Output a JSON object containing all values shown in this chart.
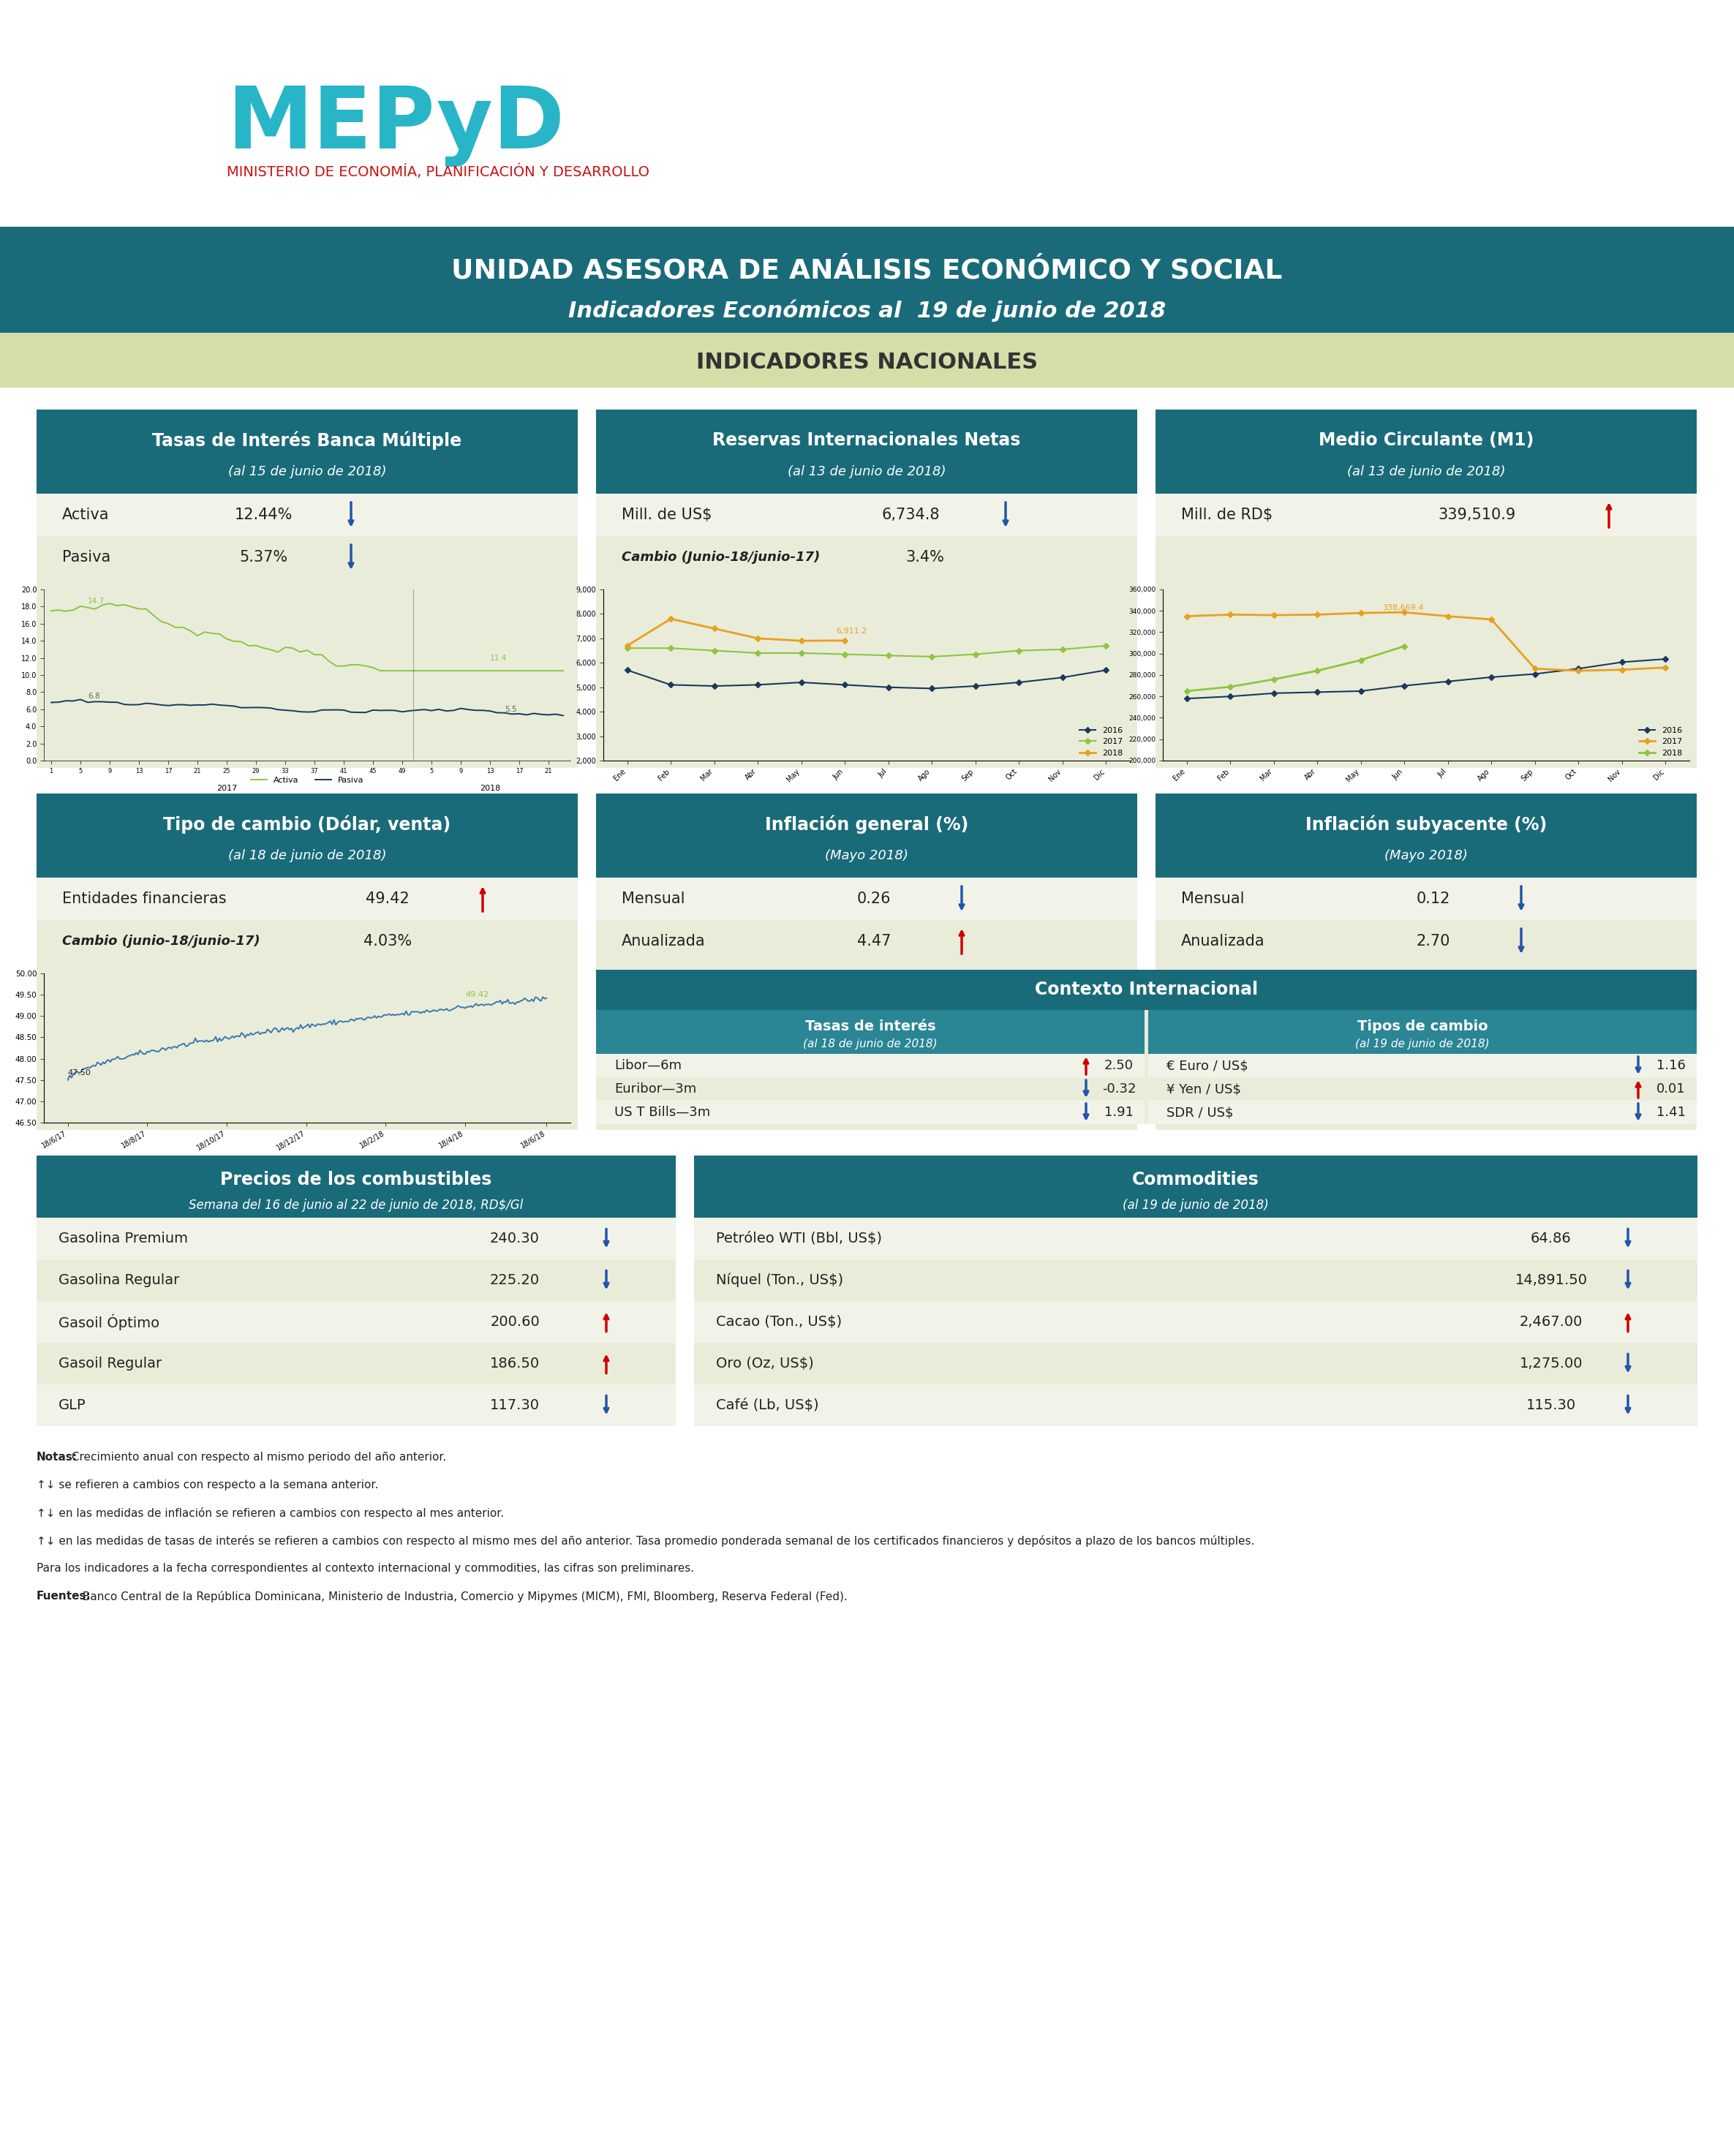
{
  "title1": "UNIDAD ASESORA DE ANÁLISIS ECONÓMICO Y SOCIAL",
  "title2": "Indicadores Económicos al  19 de junio de 2018",
  "title3": "INDICADORES NACIONALES",
  "color_teal": "#1a6b7a",
  "color_teal_light": "#2a8595",
  "color_nacionales_bg": "#d4dea8",
  "color_box_bg": "#eaecda",
  "color_row_alt": "#f2f3e8",
  "color_white": "#ffffff",
  "color_green_chart": "#8dc63f",
  "color_gold": "#e8a020",
  "color_blue_dark": "#1a3a5c",
  "color_red": "#cc0000",
  "color_blue_arrow": "#2255aa",
  "color_line_tc": "#3a7aaa",
  "color_text": "#222222",
  "mepyd_color": "#29b5c8",
  "mepyd_sub_color": "#cc1111",
  "tasas_title": "Tasas de Interés Banca Múltiple",
  "tasas_subtitle": "(al 15 de junio de 2018)",
  "reservas_title": "Reservas Internacionales Netas",
  "reservas_subtitle": "(al 13 de junio de 2018)",
  "medio_title": "Medio Circulante (M1)",
  "medio_subtitle": "(al 13 de junio de 2018)",
  "tipo_title": "Tipo de cambio (Dólar, venta)",
  "tipo_subtitle": "(al 18 de junio de 2018)",
  "inflacion_title": "Inflación general (%)",
  "inflacion_subtitle": "(Mayo 2018)",
  "inflacion_sub_title": "Inflación subyacente (%)",
  "inflacion_sub_subtitle": "(Mayo 2018)",
  "contexto_title": "Contexto Internacional",
  "combustibles_title": "Precios de los combustibles",
  "combustibles_subtitle": "Semana del 16 de junio al 22 de junio de 2018, RD$/Gl",
  "commodities_title": "Commodities",
  "commodities_subtitle": "(al 19 de junio de 2018)",
  "month_labels": [
    "Ene",
    "Feb",
    "Mar",
    "Abr",
    "May",
    "Jun",
    "Jul",
    "Ago",
    "Sep",
    "Oct",
    "Nov",
    "Dic"
  ],
  "reservas_2016": [
    5700,
    5100,
    5050,
    5100,
    5200,
    5100,
    5000,
    4950,
    5050,
    5200,
    5400,
    5700
  ],
  "reservas_2017": [
    6600,
    6600,
    6500,
    6400,
    6400,
    6350,
    6300,
    6250,
    6350,
    6500,
    6550,
    6700
  ],
  "reservas_2018": [
    6700,
    7800,
    7400,
    7000,
    6900,
    6911
  ],
  "medio_2016": [
    258000,
    260000,
    263000,
    264000,
    265000,
    270000,
    274000,
    278000,
    281000,
    286000,
    292000,
    295000
  ],
  "medio_2017": [
    335000,
    336500,
    336000,
    336500,
    338000,
    338669,
    335000,
    332000,
    286000,
    284000,
    285000,
    287000
  ],
  "medio_2018": [
    265000,
    269000,
    276000,
    284000,
    294000,
    307000
  ],
  "tc_x_labels": [
    "18/6/17",
    "18/8/17",
    "18/10/17",
    "18/12/17",
    "18/2/18",
    "18/4/18",
    "18/6/18"
  ],
  "footer_notes": [
    [
      "bold",
      "Notas:",
      " Crecimiento anual con respecto al mismo periodo del año anterior."
    ],
    [
      "normal",
      "↑↓ se refieren a cambios con respecto a la semana anterior.",
      ""
    ],
    [
      "normal",
      "↑↓ en las medidas de inflación se refieren a cambios con respecto al mes anterior.",
      ""
    ],
    [
      "normal",
      "↑↓ en las medidas de tasas de interés se refieren a cambios con respecto al mismo mes del año anterior. Tasa promedio ponderada semanal de los certificados financieros y depósitos a plazo de los bancos múltiples.",
      ""
    ],
    [
      "normal",
      "Para los indicadores a la fecha correspondientes al contexto internacional y commodities, las cifras son preliminares.",
      ""
    ],
    [
      "bold",
      "Fuentes:",
      " Banco Central de la República Dominicana, Ministerio de Industria, Comercio y Mipymes (MICM), FMI, Bloomberg, Reserva Federal (Fed)."
    ]
  ]
}
